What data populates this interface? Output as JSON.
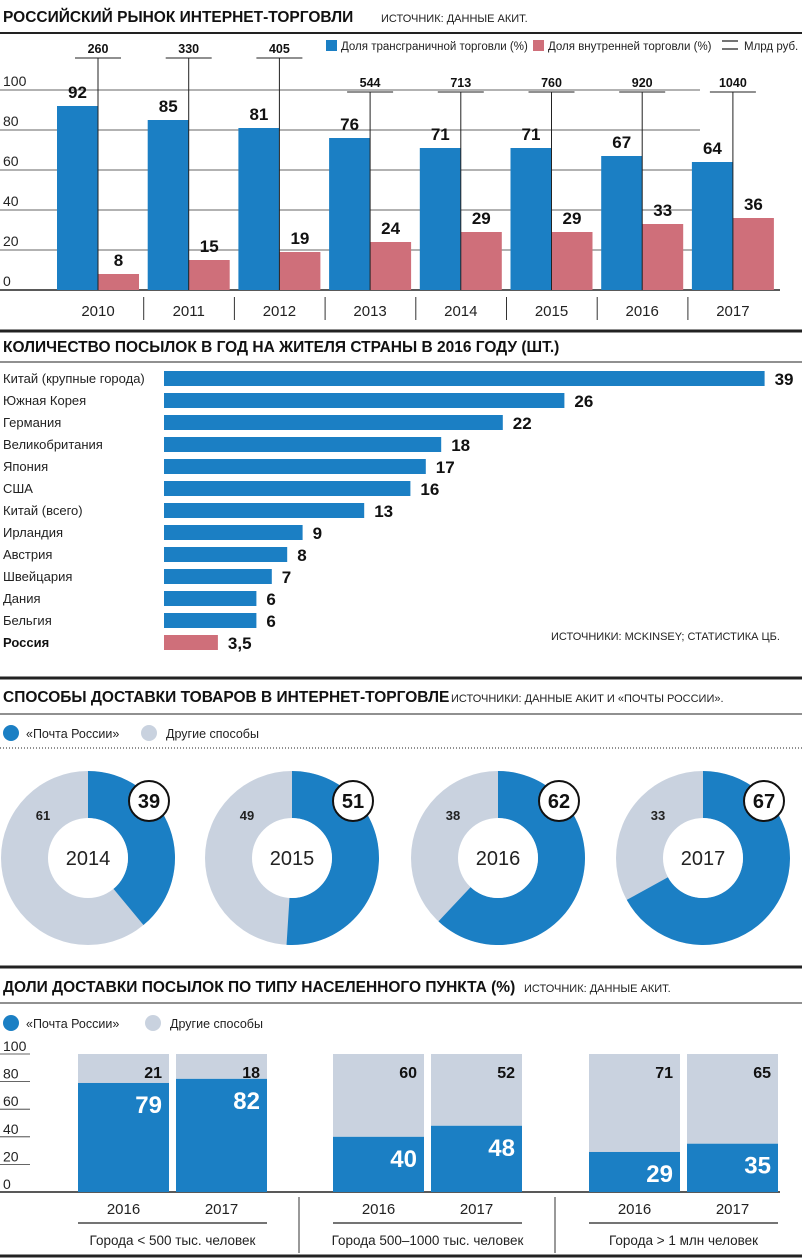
{
  "colors": {
    "blue": "#1b7fc4",
    "pink": "#cf6f7a",
    "grey": "#c9d2df",
    "line": "#222222"
  },
  "chart_data": [
    {
      "id": "market",
      "type": "bar",
      "title": "РОССИЙСКИЙ РЫНОК ИНТЕРНЕТ-ТОРГОВЛИ",
      "source": "ИСТОЧНИК: ДАННЫЕ АКИТ.",
      "categories": [
        "2010",
        "2011",
        "2012",
        "2013",
        "2014",
        "2015",
        "2016",
        "2017"
      ],
      "ylim": [
        0,
        100
      ],
      "yticks": [
        "0",
        "20",
        "40",
        "60",
        "80",
        "100"
      ],
      "series": [
        {
          "name": "Доля трансграничной торговли (%)",
          "values": [
            92,
            85,
            81,
            76,
            71,
            71,
            67,
            64
          ],
          "color": "#1b7fc4"
        },
        {
          "name": "Доля внутренней торговли (%)",
          "values": [
            8,
            15,
            19,
            24,
            29,
            29,
            33,
            36
          ],
          "color": "#cf6f7a"
        }
      ],
      "markers": {
        "name": "Млрд руб.",
        "values": [
          "260",
          "330",
          "405",
          "544",
          "713",
          "760",
          "920",
          "1040"
        ]
      }
    },
    {
      "id": "parcels",
      "type": "bar",
      "orientation": "horizontal",
      "title": "КОЛИЧЕСТВО ПОСЫЛОК В ГОД НА ЖИТЕЛЯ СТРАНЫ В 2016 ГОДУ (ШТ.)",
      "source": "ИСТОЧНИКИ: MCKINSEY; СТАТИСТИКА ЦБ.",
      "categories": [
        "Китай (крупные города)",
        "Южная Корея",
        "Германия",
        "Великобритания",
        "Япония",
        "США",
        "Китай (всего)",
        "Ирландия",
        "Австрия",
        "Швейцария",
        "Дания",
        "Бельгия",
        "Россия"
      ],
      "values": [
        39,
        26,
        22,
        18,
        17,
        16,
        13,
        9,
        8,
        7,
        6,
        6,
        3.5
      ],
      "labels": [
        "39",
        "26",
        "22",
        "18",
        "17",
        "16",
        "13",
        "9",
        "8",
        "7",
        "6",
        "6",
        "3,5"
      ],
      "highlight": "Россия"
    },
    {
      "id": "delivery",
      "type": "pie",
      "style": "donut",
      "title": "СПОСОБЫ ДОСТАВКИ ТОВАРОВ В ИНТЕРНЕТ-ТОРГОВЛЕ",
      "source": "ИСТОЧНИКИ: ДАННЫЕ АКИТ И «ПОЧТЫ РОССИИ».",
      "legend": [
        "«Почта России»",
        "Другие способы"
      ],
      "items": [
        {
          "year": "2014",
          "post": 39,
          "other": 61
        },
        {
          "year": "2015",
          "post": 51,
          "other": 49
        },
        {
          "year": "2016",
          "post": 62,
          "other": 38
        },
        {
          "year": "2017",
          "post": 67,
          "other": 33
        }
      ]
    },
    {
      "id": "settlements",
      "type": "bar",
      "stacked": true,
      "title": "ДОЛИ ДОСТАВКИ ПОСЫЛОК ПО ТИПУ НАСЕЛЕННОГО ПУНКТА (%)",
      "source": "ИСТОЧНИК: ДАННЫЕ АКИТ.",
      "legend": [
        "«Почта России»",
        "Другие способы"
      ],
      "ylim": [
        0,
        100
      ],
      "yticks": [
        "0",
        "20",
        "40",
        "60",
        "80",
        "100"
      ],
      "groups": [
        {
          "label": "Города < 500 тыс. человек",
          "bars": [
            {
              "year": "2016",
              "post": 79,
              "other": 21
            },
            {
              "year": "2017",
              "post": 82,
              "other": 18
            }
          ]
        },
        {
          "label": "Города 500–1000 тыс. человек",
          "bars": [
            {
              "year": "2016",
              "post": 40,
              "other": 60
            },
            {
              "year": "2017",
              "post": 48,
              "other": 52
            }
          ]
        },
        {
          "label": "Города > 1 млн человек",
          "bars": [
            {
              "year": "2016",
              "post": 29,
              "other": 71
            },
            {
              "year": "2017",
              "post": 35,
              "other": 65
            }
          ]
        }
      ]
    }
  ]
}
